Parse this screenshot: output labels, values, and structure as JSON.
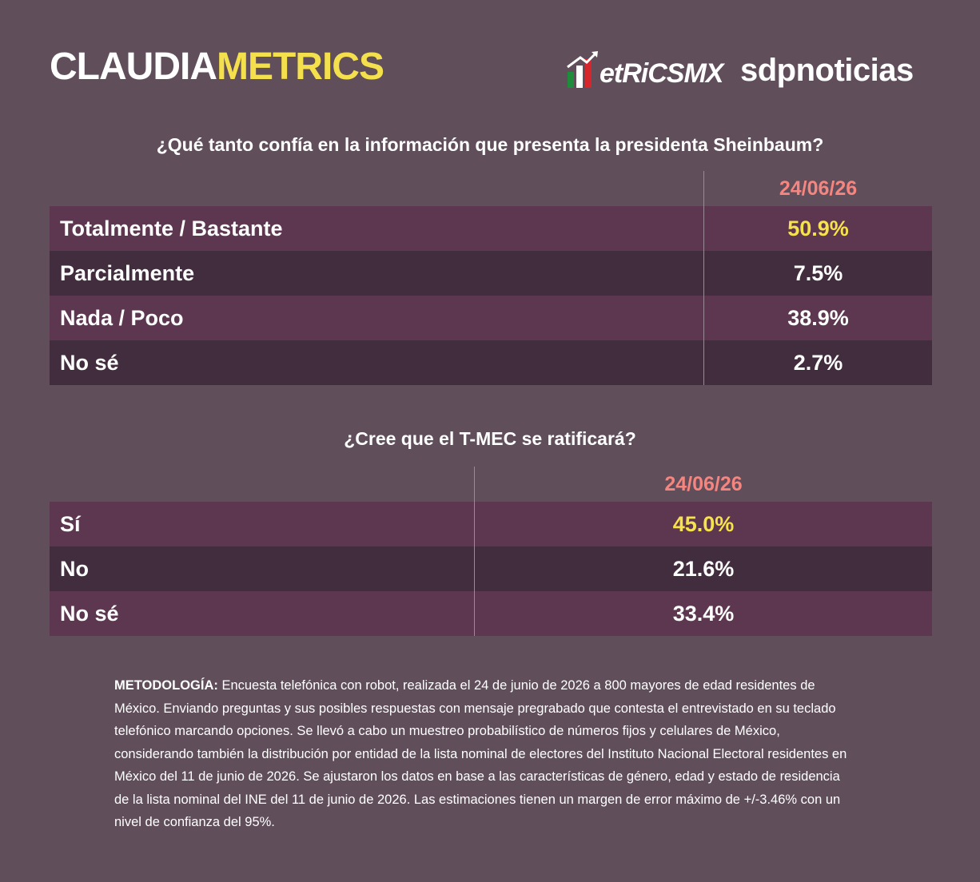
{
  "header": {
    "brand": [
      "CLAUDIA",
      "METRICS"
    ],
    "logos": [
      "etRiCSMX",
      "sdpnoticias"
    ]
  },
  "tables": [
    {
      "question": "¿Qué tanto confía en la información que presenta la presidenta Sheinbaum?",
      "column": "24/06/26",
      "rows": [
        [
          "Totalmente / Bastante",
          "50.9%"
        ],
        [
          "Parcialmente",
          "7.5%"
        ],
        [
          "Nada / Poco",
          "38.9%"
        ],
        [
          "No sé",
          "2.7%"
        ]
      ]
    },
    {
      "question": "¿Cree que el T-MEC se ratificará?",
      "column": "24/06/26",
      "rows": [
        [
          "Sí",
          "45.0%"
        ],
        [
          "No",
          "21.6%"
        ],
        [
          "No sé",
          "33.4%"
        ]
      ]
    }
  ],
  "methodology": {
    "label": "METODOLOGÍA:",
    "text": "Encuesta telefónica con robot, realizada el 24 de junio de 2026 a 800 mayores de edad residentes de México. Enviando preguntas y sus posibles respuestas con mensaje pregrabado que contesta el entrevistado en su teclado telefónico marcando opciones. Se llevó a cabo un muestreo probabilístico de números fijos y celulares de México, considerando también la distribución por entidad de la lista nominal de electores del Instituto Nacional Electoral residentes en México del 11 de junio de 2026. Se ajustaron los datos en base a las características de género, edad y estado de residencia de la lista nominal del INE del 11 de junio de 2026. Las estimaciones tienen un margen de error máximo de +/-3.46% con un nivel de confianza del 95%."
  }
}
